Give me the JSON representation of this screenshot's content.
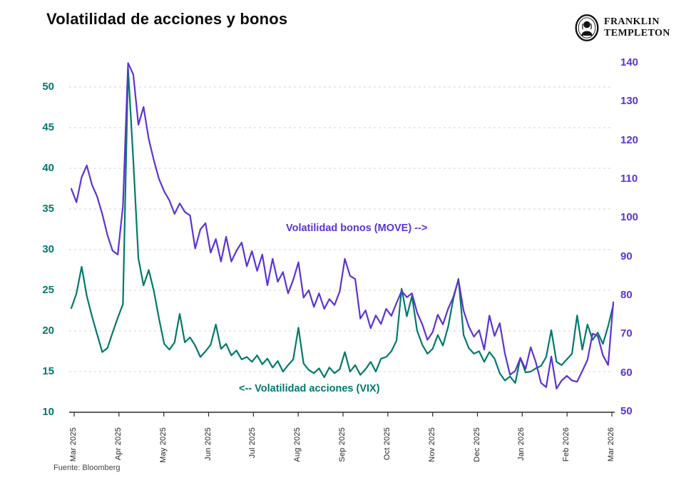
{
  "header": {
    "title": "Volatilidad de acciones y bonos",
    "logo": {
      "name": "Franklin Templeton",
      "line1": "FRANKLIN",
      "line2": "TEMPLETON"
    }
  },
  "footer": {
    "source": "Fuente: Bloomberg"
  },
  "chart_data": {
    "type": "line",
    "title": "Volatilidad de acciones y bonos",
    "x_tick_labels": [
      "Mar 2025",
      "Apr 2025",
      "May 2025",
      "Jun 2025",
      "Jul 2025",
      "Aug 2025",
      "Sep 2025",
      "Oct 2025",
      "Nov 2025",
      "Dec 2025",
      "Jan 2026",
      "Feb 2026",
      "Mar 2026"
    ],
    "grid": {
      "style": "horizontal-dashed",
      "at_left_values": [
        15,
        20,
        25,
        30,
        35,
        40,
        45,
        50
      ]
    },
    "legend_position": "none",
    "left_axis": {
      "series": "VIX",
      "ticks": [
        10,
        15,
        20,
        25,
        30,
        35,
        40,
        45,
        50
      ],
      "range": [
        10,
        53.3
      ],
      "color": "#00796b"
    },
    "right_axis": {
      "series": "MOVE",
      "ticks": [
        50,
        60,
        70,
        80,
        90,
        100,
        110,
        120,
        130,
        140
      ],
      "range": [
        50,
        140.6
      ],
      "color": "#5c33d4"
    },
    "annotations": [
      {
        "text": "Volatilidad bonos (MOVE) -->",
        "series": "MOVE",
        "color": "#5c33d4"
      },
      {
        "text": "<-- Volatilidad acciones (VIX)",
        "series": "VIX",
        "color": "#00796b"
      }
    ],
    "series": [
      {
        "name": "Volatilidad acciones (VIX)",
        "axis": "left",
        "color": "#00796b",
        "values": [
          22.8,
          24.6,
          27.9,
          24.3,
          21.8,
          19.6,
          17.4,
          17.9,
          19.8,
          21.6,
          23.3,
          52.3,
          41.0,
          28.9,
          25.6,
          27.5,
          24.9,
          21.5,
          18.4,
          17.7,
          18.6,
          22.1,
          18.6,
          19.2,
          18.2,
          16.8,
          17.5,
          18.3,
          20.8,
          17.8,
          18.4,
          17.0,
          17.6,
          16.5,
          16.8,
          16.2,
          17.0,
          15.9,
          16.6,
          15.5,
          16.3,
          15.0,
          15.8,
          16.5,
          20.4,
          16.0,
          15.2,
          14.8,
          15.4,
          14.3,
          15.5,
          14.8,
          15.3,
          17.4,
          15.0,
          15.8,
          14.6,
          15.3,
          16.2,
          15.0,
          16.6,
          16.8,
          17.5,
          18.8,
          25.2,
          21.8,
          24.3,
          20.0,
          18.3,
          17.2,
          17.8,
          19.5,
          18.2,
          20.5,
          23.9,
          26.4,
          19.5,
          17.9,
          17.2,
          17.5,
          16.2,
          17.4,
          16.6,
          14.8,
          13.9,
          14.4,
          13.6,
          16.7,
          14.9,
          15.0,
          15.4,
          15.7,
          16.8,
          20.1,
          16.2,
          15.8,
          16.5,
          17.2,
          21.9,
          17.7,
          20.8,
          18.9,
          19.8,
          18.4,
          20.6,
          23.2
        ]
      },
      {
        "name": "Volatilidad bonos (MOVE)",
        "axis": "right",
        "color": "#5c33d4",
        "values": [
          107.5,
          104.0,
          110.5,
          113.5,
          108.5,
          105.5,
          101.0,
          95.5,
          91.5,
          90.5,
          103.0,
          139.9,
          137.0,
          124.0,
          128.6,
          120.3,
          114.8,
          110.0,
          106.8,
          104.5,
          101.0,
          103.7,
          101.5,
          100.6,
          92.1,
          97.0,
          98.6,
          91.0,
          94.5,
          88.7,
          95.1,
          88.7,
          91.5,
          93.6,
          87.5,
          91.4,
          86.3,
          90.5,
          82.6,
          89.4,
          83.5,
          86.0,
          80.5,
          84.0,
          88.5,
          79.4,
          81.3,
          77.0,
          80.5,
          76.5,
          79.0,
          77.5,
          81.0,
          89.4,
          85.0,
          84.2,
          74.0,
          76.1,
          71.5,
          74.8,
          72.6,
          76.5,
          74.7,
          78.0,
          81.1,
          79.5,
          80.5,
          75.5,
          72.5,
          68.5,
          70.5,
          75.0,
          72.5,
          76.5,
          79.5,
          84.0,
          76.0,
          72.0,
          69.3,
          71.0,
          66.0,
          74.8,
          69.5,
          72.8,
          65.0,
          59.5,
          60.5,
          63.8,
          61.0,
          66.6,
          62.7,
          57.4,
          56.3,
          64.2,
          55.9,
          58.0,
          59.2,
          58.0,
          57.7,
          60.5,
          63.3,
          70.1,
          69.5,
          64.5,
          62.0,
          78.2
        ]
      }
    ]
  }
}
